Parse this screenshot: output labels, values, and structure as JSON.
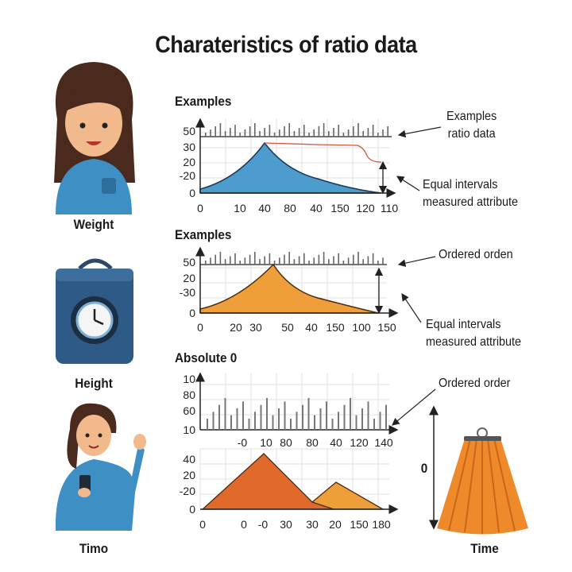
{
  "title": "Charateristics of ratio data",
  "left_captions": [
    "Weight",
    "Height",
    "Timo"
  ],
  "right_caption": "Time",
  "zero_label": "0",
  "charts": [
    {
      "heading": "Examples",
      "y_labels": [
        "50",
        "30",
        "20",
        "-20",
        "0"
      ],
      "x_labels": [
        "0",
        "10",
        "40",
        "80",
        "40",
        "150",
        "120",
        "110"
      ],
      "fill": "#4e9ccd",
      "notes": [
        "Examples\nratio data",
        "Equal intervals\nmeasured attribute"
      ]
    },
    {
      "heading": "Examples",
      "y_labels": [
        "50",
        "20",
        "-30",
        "0"
      ],
      "x_labels": [
        "0",
        "20",
        "30",
        "50",
        "40",
        "150",
        "100",
        "150"
      ],
      "fill": "#ee9f3a",
      "notes": [
        "Ordered orden",
        "Equal intervals\nmeasured attribute"
      ]
    },
    {
      "heading": "Absolute 0",
      "top_y_labels": [
        "10",
        "80",
        "60",
        "10"
      ],
      "top_x_labels": [
        "-0",
        "10",
        "80",
        "80",
        "40",
        "120",
        "140"
      ],
      "y_labels": [
        "40",
        "20",
        "-20",
        "0"
      ],
      "x_labels": [
        "0",
        "0",
        "-0",
        "30",
        "30",
        "20",
        "150",
        "180"
      ],
      "fill": "#e06a2b",
      "fill2": "#ee9f3a",
      "notes": [
        "Ordered order"
      ]
    }
  ],
  "colors": {
    "accent_red": "#d9553d",
    "axis": "#222222",
    "grid": "#e2e2e2"
  }
}
